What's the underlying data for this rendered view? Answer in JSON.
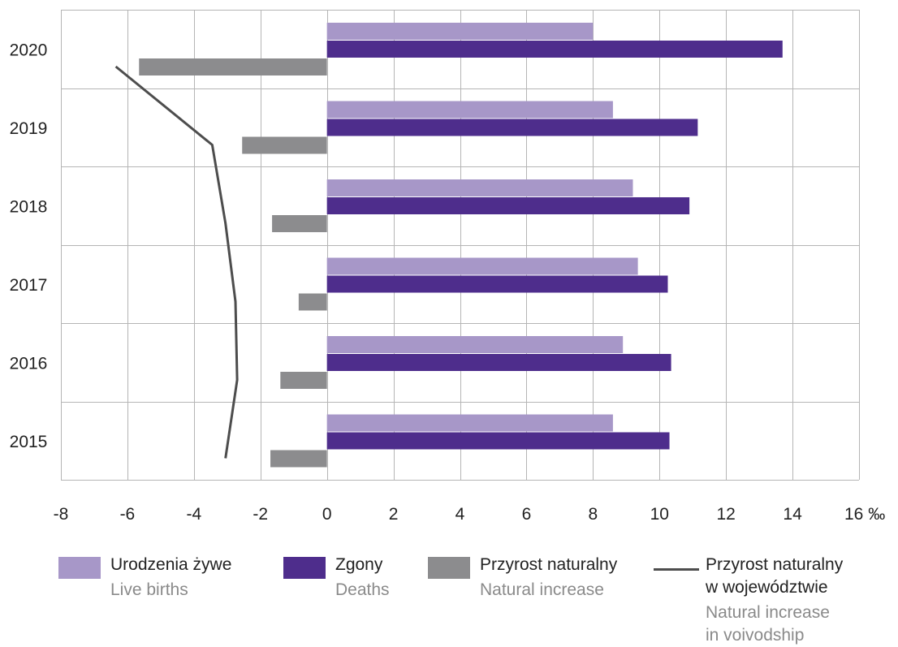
{
  "chart_data": {
    "type": "bar",
    "orientation": "horizontal",
    "categories": [
      "2020",
      "2019",
      "2018",
      "2017",
      "2016",
      "2015"
    ],
    "series": [
      {
        "name": "Urodzenia żywe",
        "name_en": "Live births",
        "kind": "bar",
        "color": "#a797c8",
        "values": [
          8.0,
          8.6,
          9.2,
          9.35,
          8.9,
          8.6
        ]
      },
      {
        "name": "Zgony",
        "name_en": "Deaths",
        "kind": "bar",
        "color": "#4e2d8c",
        "values": [
          13.7,
          11.15,
          10.9,
          10.25,
          10.35,
          10.3
        ]
      },
      {
        "name": "Przyrost naturalny",
        "name_en": "Natural increase",
        "kind": "bar",
        "color": "#8c8c8e",
        "values": [
          -5.65,
          -2.55,
          -1.65,
          -0.85,
          -1.4,
          -1.7
        ]
      },
      {
        "name": "Przyrost naturalny w województwie",
        "name_en": "Natural increase in voivodship",
        "kind": "line",
        "color": "#4d4d4d",
        "values": [
          -6.35,
          -3.45,
          -3.05,
          -2.75,
          -2.7,
          -3.05
        ]
      }
    ],
    "x_ticks": [
      "-8",
      "-6",
      "-4",
      "-2",
      "0",
      "2",
      "4",
      "6",
      "8",
      "10",
      "12",
      "14",
      "16 ‰"
    ],
    "xlim": [
      -8,
      16
    ],
    "unit": "‰",
    "grid": true,
    "legend_position": "bottom",
    "legend": [
      {
        "label": "Urodzenia żywe",
        "sub": "Live births",
        "color": "#a797c8"
      },
      {
        "label": "Zgony",
        "sub": "Deaths",
        "color": "#4e2d8c"
      },
      {
        "label": "Przyrost naturalny",
        "sub": "Natural increase",
        "color": "#8c8c8e"
      },
      {
        "label": "Przyrost naturalny",
        "label2": "w województwie",
        "sub": "Natural increase",
        "sub2": "in voivodship",
        "color": "#4d4d4d"
      }
    ]
  }
}
